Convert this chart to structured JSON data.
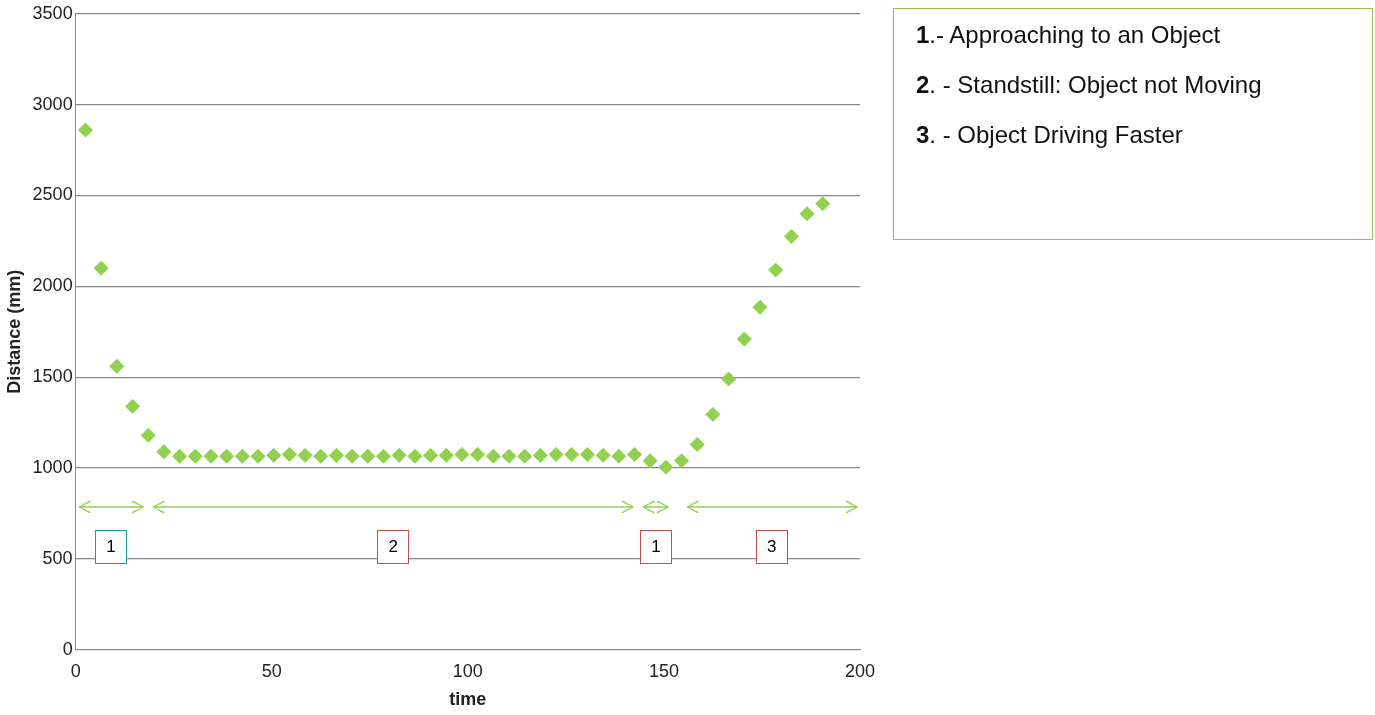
{
  "chart_data": {
    "type": "scatter",
    "xlabel": "time",
    "ylabel": "Distance (mm)",
    "marker": "diamond",
    "grid": "y",
    "legend": false,
    "xlim": [
      0,
      200
    ],
    "xticks": [
      0,
      50,
      100,
      150,
      200
    ],
    "ylim": [
      0,
      3500
    ],
    "yticks": [
      0,
      500,
      1000,
      1500,
      2000,
      2500,
      3000,
      3500
    ],
    "series": [
      {
        "color": "#92d050",
        "x": [
          2.5,
          6.5,
          10.5,
          14.5,
          18.5,
          22.5,
          26.5,
          30.5,
          34.5,
          38.5,
          42.5,
          46.5,
          50.5,
          54.5,
          58.5,
          62.5,
          66.5,
          70.5,
          74.5,
          78.5,
          82.5,
          86.5,
          90.5,
          94.5,
          98.5,
          102.5,
          106.5,
          110.5,
          114.5,
          118.5,
          122.5,
          126.5,
          130.5,
          134.5,
          138.5,
          142.5,
          146.5,
          150.5,
          154.5,
          158.5,
          162.5,
          166.5,
          170.5,
          174.5,
          178.5,
          182.5,
          186.5,
          190.5
        ],
        "values": [
          2860,
          2100,
          1560,
          1340,
          1180,
          1090,
          1065,
          1065,
          1065,
          1065,
          1065,
          1065,
          1070,
          1075,
          1070,
          1065,
          1070,
          1065,
          1065,
          1065,
          1070,
          1065,
          1070,
          1070,
          1075,
          1075,
          1065,
          1065,
          1065,
          1070,
          1075,
          1075,
          1075,
          1070,
          1065,
          1075,
          1040,
          1005,
          1040,
          1130,
          1295,
          1490,
          1710,
          1885,
          2090,
          2275,
          2400,
          2455
        ]
      }
    ],
    "annotations": [
      "1.- Approaching to an Object",
      "2. - Standstill: Object not Moving",
      "3. - Object Driving Faster",
      "1",
      "2",
      "1",
      "3"
    ]
  }
}
